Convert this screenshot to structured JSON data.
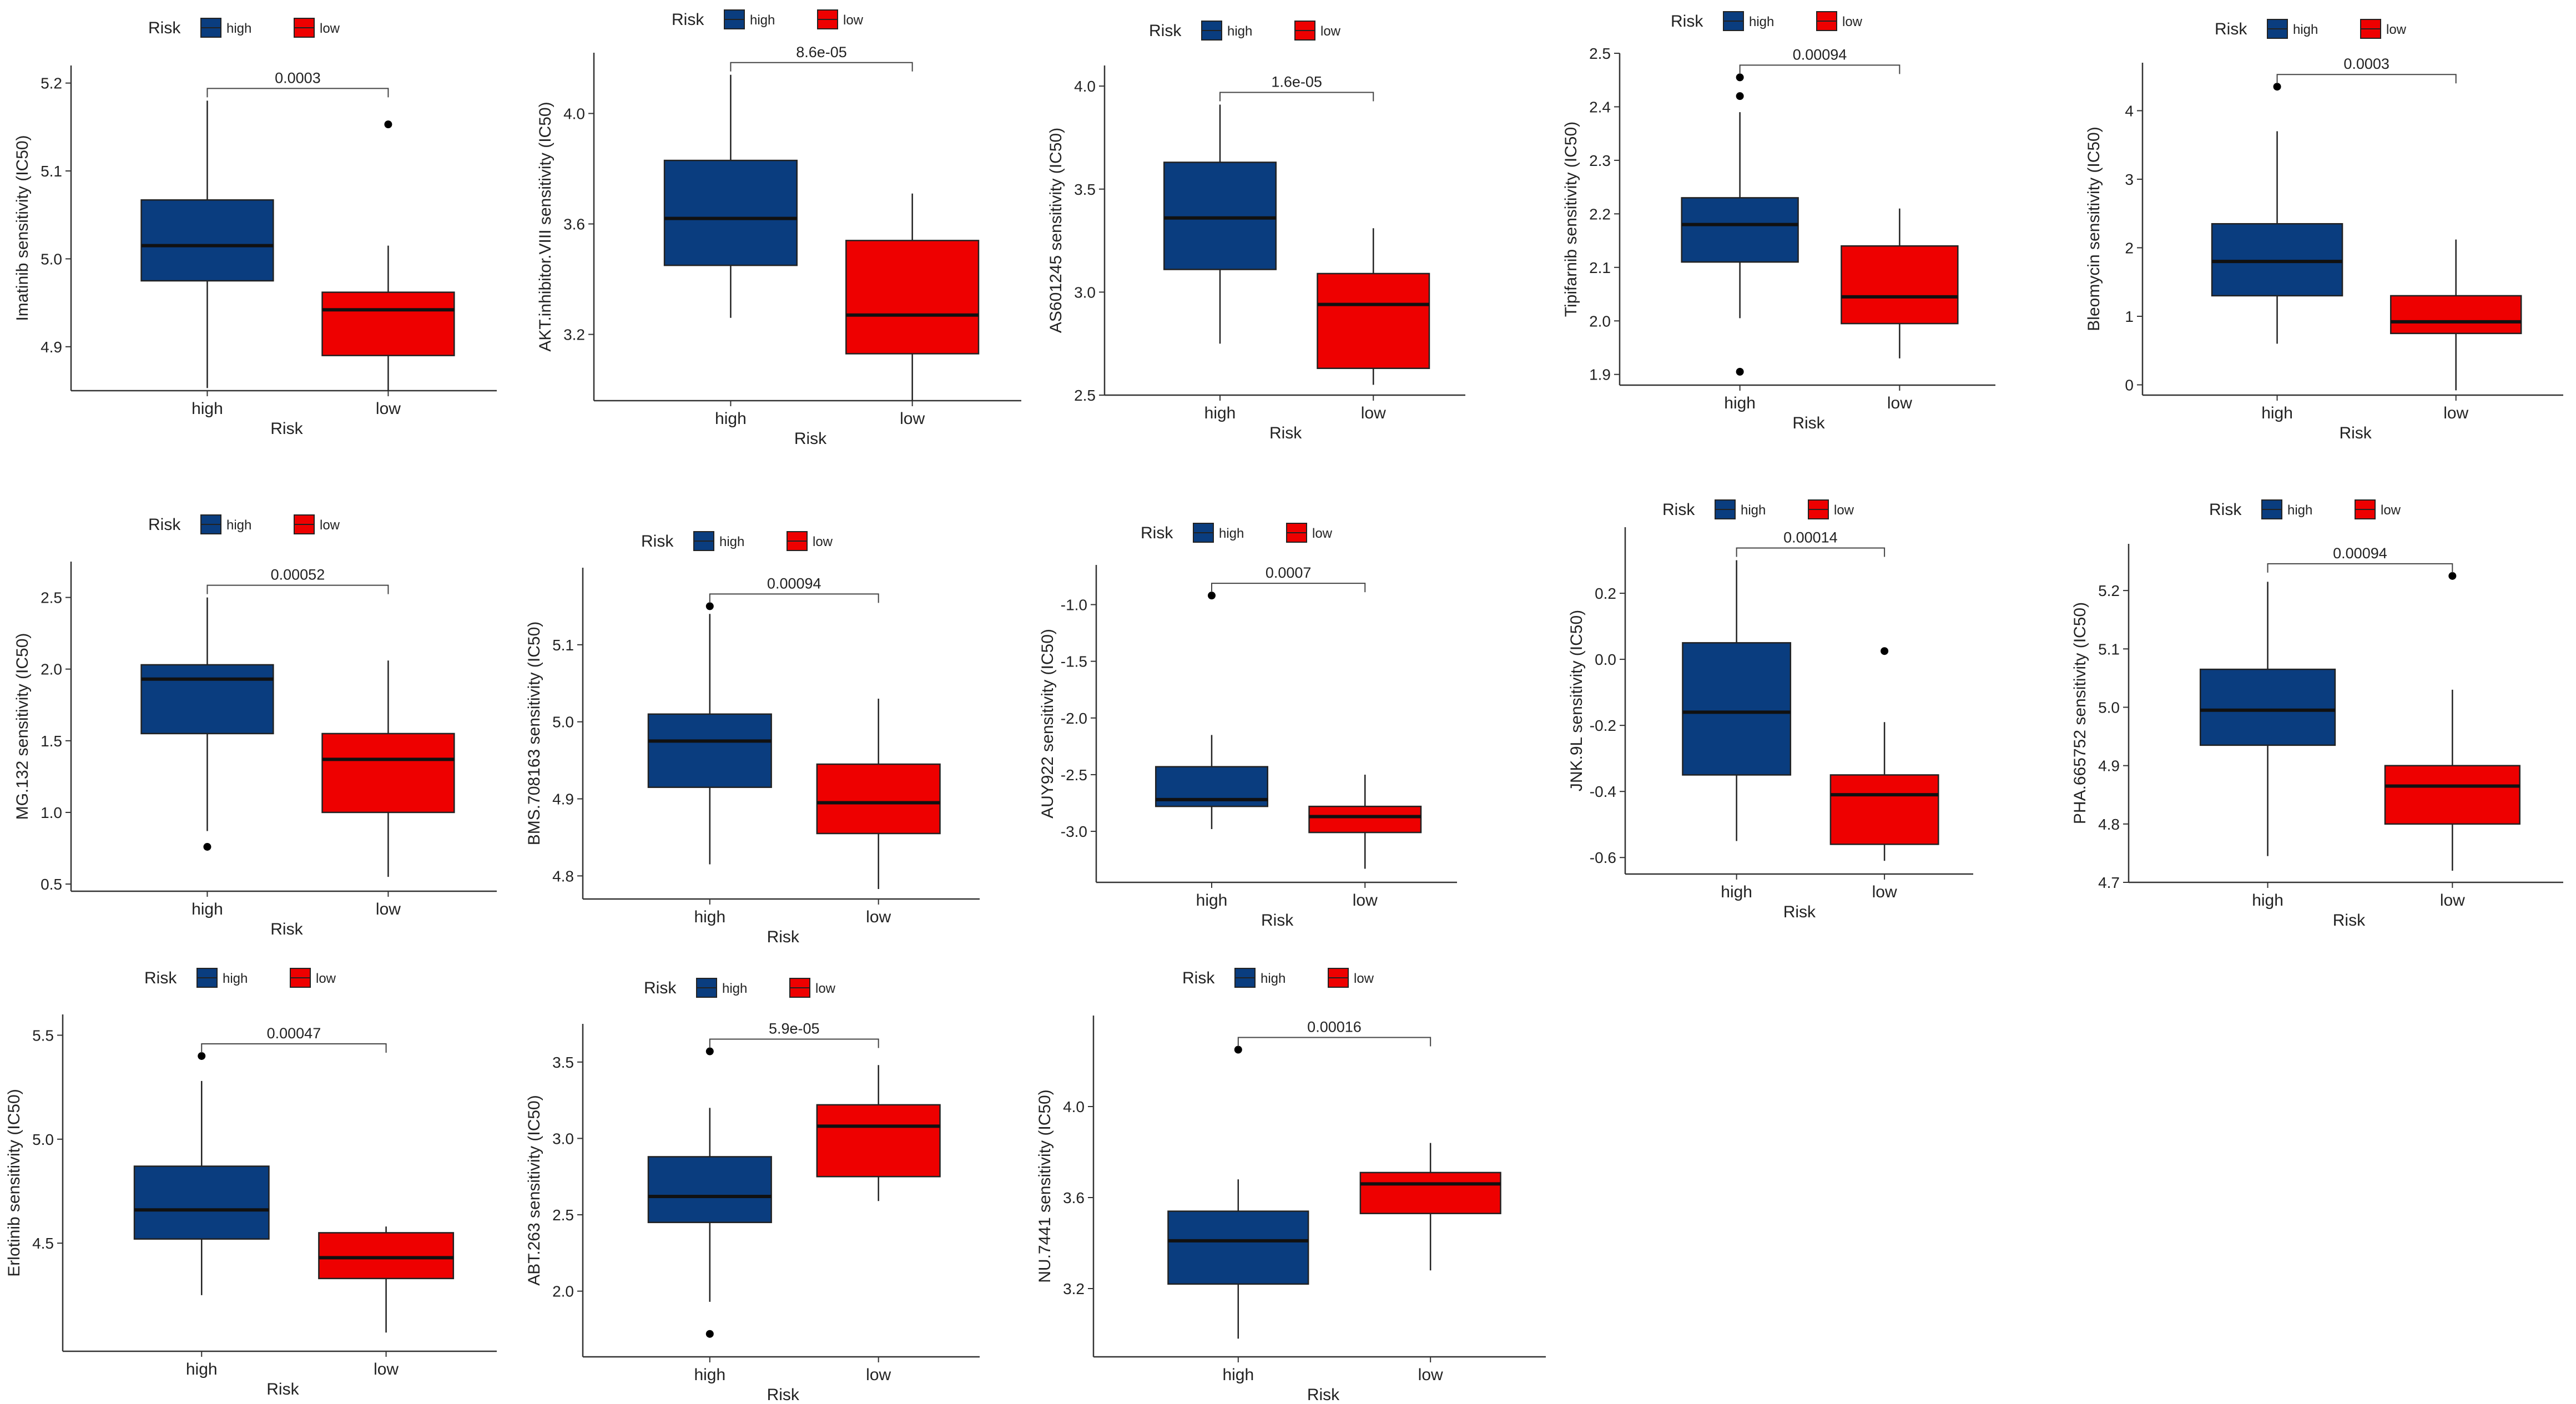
{
  "chart_data": [
    {
      "type": "box",
      "ylabel": "Imatinib sensitivity (IC50)",
      "xlabel": "Risk",
      "legend_title": "Risk",
      "categories": [
        "high",
        "low"
      ],
      "colors": [
        "#0a3d7f",
        "#ee0000"
      ],
      "ylim": [
        4.85,
        5.22
      ],
      "yticks": [
        4.9,
        5.0,
        5.1,
        5.2
      ],
      "yticks_label": [
        "4.9",
        "5.0",
        "5.1",
        "5.2"
      ],
      "pvalue": "0.0003",
      "boxes": [
        {
          "q1": 4.975,
          "median": 5.015,
          "q3": 5.067,
          "whislo": 4.853,
          "whishi": 5.18,
          "outliers": []
        },
        {
          "q1": 4.89,
          "median": 4.942,
          "q3": 4.962,
          "whislo": 4.85,
          "whishi": 5.015,
          "outliers": [
            5.153
          ]
        }
      ]
    },
    {
      "type": "box",
      "ylabel": "AKT.inhibitor.VIII sensitivity (IC50)",
      "xlabel": "Risk",
      "legend_title": "Risk",
      "categories": [
        "high",
        "low"
      ],
      "colors": [
        "#0a3d7f",
        "#ee0000"
      ],
      "ylim": [
        2.96,
        4.22
      ],
      "yticks": [
        3.2,
        3.6,
        4.0
      ],
      "yticks_label": [
        "3.2",
        "3.6",
        "4.0"
      ],
      "pvalue": "8.6e-05",
      "boxes": [
        {
          "q1": 3.45,
          "median": 3.62,
          "q3": 3.83,
          "whislo": 3.26,
          "whishi": 4.14,
          "outliers": []
        },
        {
          "q1": 3.13,
          "median": 3.27,
          "q3": 3.54,
          "whislo": 2.96,
          "whishi": 3.71,
          "outliers": []
        }
      ]
    },
    {
      "type": "box",
      "ylabel": "AS601245 sensitivity (IC50)",
      "xlabel": "Risk",
      "legend_title": "Risk",
      "categories": [
        "high",
        "low"
      ],
      "colors": [
        "#0a3d7f",
        "#ee0000"
      ],
      "ylim": [
        2.5,
        4.1
      ],
      "yticks": [
        2.5,
        3.0,
        3.5,
        4.0
      ],
      "yticks_label": [
        "2.5",
        "3.0",
        "3.5",
        "4.0"
      ],
      "pvalue": "1.6e-05",
      "boxes": [
        {
          "q1": 3.11,
          "median": 3.36,
          "q3": 3.63,
          "whislo": 2.75,
          "whishi": 3.91,
          "outliers": []
        },
        {
          "q1": 2.63,
          "median": 2.94,
          "q3": 3.09,
          "whislo": 2.55,
          "whishi": 3.31,
          "outliers": []
        }
      ]
    },
    {
      "type": "box",
      "ylabel": "Tipifarnib sensitivity (IC50)",
      "xlabel": "Risk",
      "legend_title": "Risk",
      "categories": [
        "high",
        "low"
      ],
      "colors": [
        "#0a3d7f",
        "#ee0000"
      ],
      "ylim": [
        1.88,
        2.5
      ],
      "yticks": [
        1.9,
        2.0,
        2.1,
        2.2,
        2.3,
        2.4,
        2.5
      ],
      "yticks_label": [
        "1.9",
        "2.0",
        "2.1",
        "2.2",
        "2.3",
        "2.4",
        "2.5"
      ],
      "pvalue": "0.00094",
      "boxes": [
        {
          "q1": 2.11,
          "median": 2.18,
          "q3": 2.23,
          "whislo": 2.005,
          "whishi": 2.39,
          "outliers": [
            2.455,
            2.42,
            1.905
          ]
        },
        {
          "q1": 1.995,
          "median": 2.045,
          "q3": 2.14,
          "whislo": 1.93,
          "whishi": 2.21,
          "outliers": []
        }
      ]
    },
    {
      "type": "box",
      "ylabel": "Bleomycin sensitivity (IC50)",
      "xlabel": "Risk",
      "legend_title": "Risk",
      "categories": [
        "high",
        "low"
      ],
      "colors": [
        "#0a3d7f",
        "#ee0000"
      ],
      "ylim": [
        -0.15,
        4.7
      ],
      "yticks": [
        0,
        1,
        2,
        3,
        4
      ],
      "yticks_label": [
        "0",
        "1",
        "2",
        "3",
        "4"
      ],
      "pvalue": "0.0003",
      "boxes": [
        {
          "q1": 1.3,
          "median": 1.8,
          "q3": 2.35,
          "whislo": 0.6,
          "whishi": 3.7,
          "outliers": [
            4.35
          ]
        },
        {
          "q1": 0.75,
          "median": 0.92,
          "q3": 1.3,
          "whislo": -0.08,
          "whishi": 2.12,
          "outliers": []
        }
      ]
    },
    {
      "type": "box",
      "ylabel": "MG.132 sensitivity (IC50)",
      "xlabel": "Risk",
      "legend_title": "Risk",
      "categories": [
        "high",
        "low"
      ],
      "colors": [
        "#0a3d7f",
        "#ee0000"
      ],
      "ylim": [
        0.45,
        2.75
      ],
      "yticks": [
        0.5,
        1.0,
        1.5,
        2.0,
        2.5
      ],
      "yticks_label": [
        "0.5",
        "1.0",
        "1.5",
        "2.0",
        "2.5"
      ],
      "pvalue": "0.00052",
      "boxes": [
        {
          "q1": 1.55,
          "median": 1.93,
          "q3": 2.03,
          "whislo": 0.87,
          "whishi": 2.5,
          "outliers": [
            0.76
          ]
        },
        {
          "q1": 1.0,
          "median": 1.37,
          "q3": 1.55,
          "whislo": 0.55,
          "whishi": 2.06,
          "outliers": []
        }
      ]
    },
    {
      "type": "box",
      "ylabel": "BMS.708163 sensitivity (IC50)",
      "xlabel": "Risk",
      "legend_title": "Risk",
      "categories": [
        "high",
        "low"
      ],
      "colors": [
        "#0a3d7f",
        "#ee0000"
      ],
      "ylim": [
        4.77,
        5.2
      ],
      "yticks": [
        4.8,
        4.9,
        5.0,
        5.1
      ],
      "yticks_label": [
        "4.8",
        "4.9",
        "5.0",
        "5.1"
      ],
      "pvalue": "0.00094",
      "boxes": [
        {
          "q1": 4.915,
          "median": 4.975,
          "q3": 5.01,
          "whislo": 4.815,
          "whishi": 5.14,
          "outliers": [
            5.15
          ]
        },
        {
          "q1": 4.855,
          "median": 4.895,
          "q3": 4.945,
          "whislo": 4.783,
          "whishi": 5.03,
          "outliers": []
        }
      ]
    },
    {
      "type": "box",
      "ylabel": "AUY922 sensitivity (IC50)",
      "xlabel": "Risk",
      "legend_title": "Risk",
      "categories": [
        "high",
        "low"
      ],
      "colors": [
        "#0a3d7f",
        "#ee0000"
      ],
      "ylim": [
        -3.45,
        -0.65
      ],
      "yticks": [
        -3.0,
        -2.5,
        -2.0,
        -1.5,
        -1.0
      ],
      "yticks_label": [
        "-3.0",
        "-2.5",
        "-2.0",
        "-1.5",
        "-1.0"
      ],
      "pvalue": "0.0007",
      "boxes": [
        {
          "q1": -2.78,
          "median": -2.72,
          "q3": -2.43,
          "whislo": -2.98,
          "whishi": -2.15,
          "outliers": [
            -0.92
          ]
        },
        {
          "q1": -3.01,
          "median": -2.87,
          "q3": -2.78,
          "whislo": -3.33,
          "whishi": -2.5,
          "outliers": []
        }
      ]
    },
    {
      "type": "box",
      "ylabel": "JNK.9L sensitivity (IC50)",
      "xlabel": "Risk",
      "legend_title": "Risk",
      "categories": [
        "high",
        "low"
      ],
      "colors": [
        "#0a3d7f",
        "#ee0000"
      ],
      "ylim": [
        -0.65,
        0.4
      ],
      "yticks": [
        -0.6,
        -0.4,
        -0.2,
        0.0,
        0.2
      ],
      "yticks_label": [
        "-0.6",
        "-0.4",
        "-0.2",
        "0.0",
        "0.2"
      ],
      "pvalue": "0.00014",
      "boxes": [
        {
          "q1": -0.35,
          "median": -0.16,
          "q3": 0.05,
          "whislo": -0.55,
          "whishi": 0.3,
          "outliers": []
        },
        {
          "q1": -0.56,
          "median": -0.41,
          "q3": -0.35,
          "whislo": -0.61,
          "whishi": -0.19,
          "outliers": [
            0.025
          ]
        }
      ]
    },
    {
      "type": "box",
      "ylabel": "PHA.665752 sensitivity (IC50)",
      "xlabel": "Risk",
      "legend_title": "Risk",
      "categories": [
        "high",
        "low"
      ],
      "colors": [
        "#0a3d7f",
        "#ee0000"
      ],
      "ylim": [
        4.7,
        5.28
      ],
      "yticks": [
        4.7,
        4.8,
        4.9,
        5.0,
        5.1,
        5.2
      ],
      "yticks_label": [
        "4.7",
        "4.8",
        "4.9",
        "5.0",
        "5.1",
        "5.2"
      ],
      "pvalue": "0.00094",
      "boxes": [
        {
          "q1": 4.935,
          "median": 4.995,
          "q3": 5.065,
          "whislo": 4.745,
          "whishi": 5.215,
          "outliers": []
        },
        {
          "q1": 4.8,
          "median": 4.865,
          "q3": 4.9,
          "whislo": 4.72,
          "whishi": 5.03,
          "outliers": [
            5.225
          ]
        }
      ]
    },
    {
      "type": "box",
      "ylabel": "Erlotinib sensitivity (IC50)",
      "xlabel": "Risk",
      "legend_title": "Risk",
      "categories": [
        "high",
        "low"
      ],
      "colors": [
        "#0a3d7f",
        "#ee0000"
      ],
      "ylim": [
        3.98,
        5.6
      ],
      "yticks": [
        4.5,
        5.0,
        5.5
      ],
      "yticks_label": [
        "4.5",
        "5.0",
        "5.5"
      ],
      "pvalue": "0.00047",
      "boxes": [
        {
          "q1": 4.52,
          "median": 4.66,
          "q3": 4.87,
          "whislo": 4.25,
          "whishi": 5.28,
          "outliers": [
            5.4
          ]
        },
        {
          "q1": 4.33,
          "median": 4.43,
          "q3": 4.55,
          "whislo": 4.07,
          "whishi": 4.58,
          "outliers": []
        }
      ]
    },
    {
      "type": "box",
      "ylabel": "ABT.263 sensitivity (IC50)",
      "xlabel": "Risk",
      "legend_title": "Risk",
      "categories": [
        "high",
        "low"
      ],
      "colors": [
        "#0a3d7f",
        "#ee0000"
      ],
      "ylim": [
        1.57,
        3.75
      ],
      "yticks": [
        2.0,
        2.5,
        3.0,
        3.5
      ],
      "yticks_label": [
        "2.0",
        "2.5",
        "3.0",
        "3.5"
      ],
      "pvalue": "5.9e-05",
      "boxes": [
        {
          "q1": 2.45,
          "median": 2.62,
          "q3": 2.88,
          "whislo": 1.93,
          "whishi": 3.2,
          "outliers": [
            3.57,
            1.72
          ]
        },
        {
          "q1": 2.75,
          "median": 3.08,
          "q3": 3.22,
          "whislo": 2.59,
          "whishi": 3.48,
          "outliers": []
        }
      ]
    },
    {
      "type": "box",
      "ylabel": "NU.7441 sensitivity (IC50)",
      "xlabel": "Risk",
      "legend_title": "Risk",
      "categories": [
        "high",
        "low"
      ],
      "colors": [
        "#0a3d7f",
        "#ee0000"
      ],
      "ylim": [
        2.9,
        4.4
      ],
      "yticks": [
        3.2,
        3.6,
        4.0
      ],
      "yticks_label": [
        "3.2",
        "3.6",
        "4.0"
      ],
      "pvalue": "0.00016",
      "boxes": [
        {
          "q1": 3.22,
          "median": 3.41,
          "q3": 3.54,
          "whislo": 2.98,
          "whishi": 3.68,
          "outliers": [
            4.25
          ]
        },
        {
          "q1": 3.53,
          "median": 3.66,
          "q3": 3.71,
          "whislo": 3.28,
          "whishi": 3.84,
          "outliers": []
        }
      ]
    }
  ]
}
